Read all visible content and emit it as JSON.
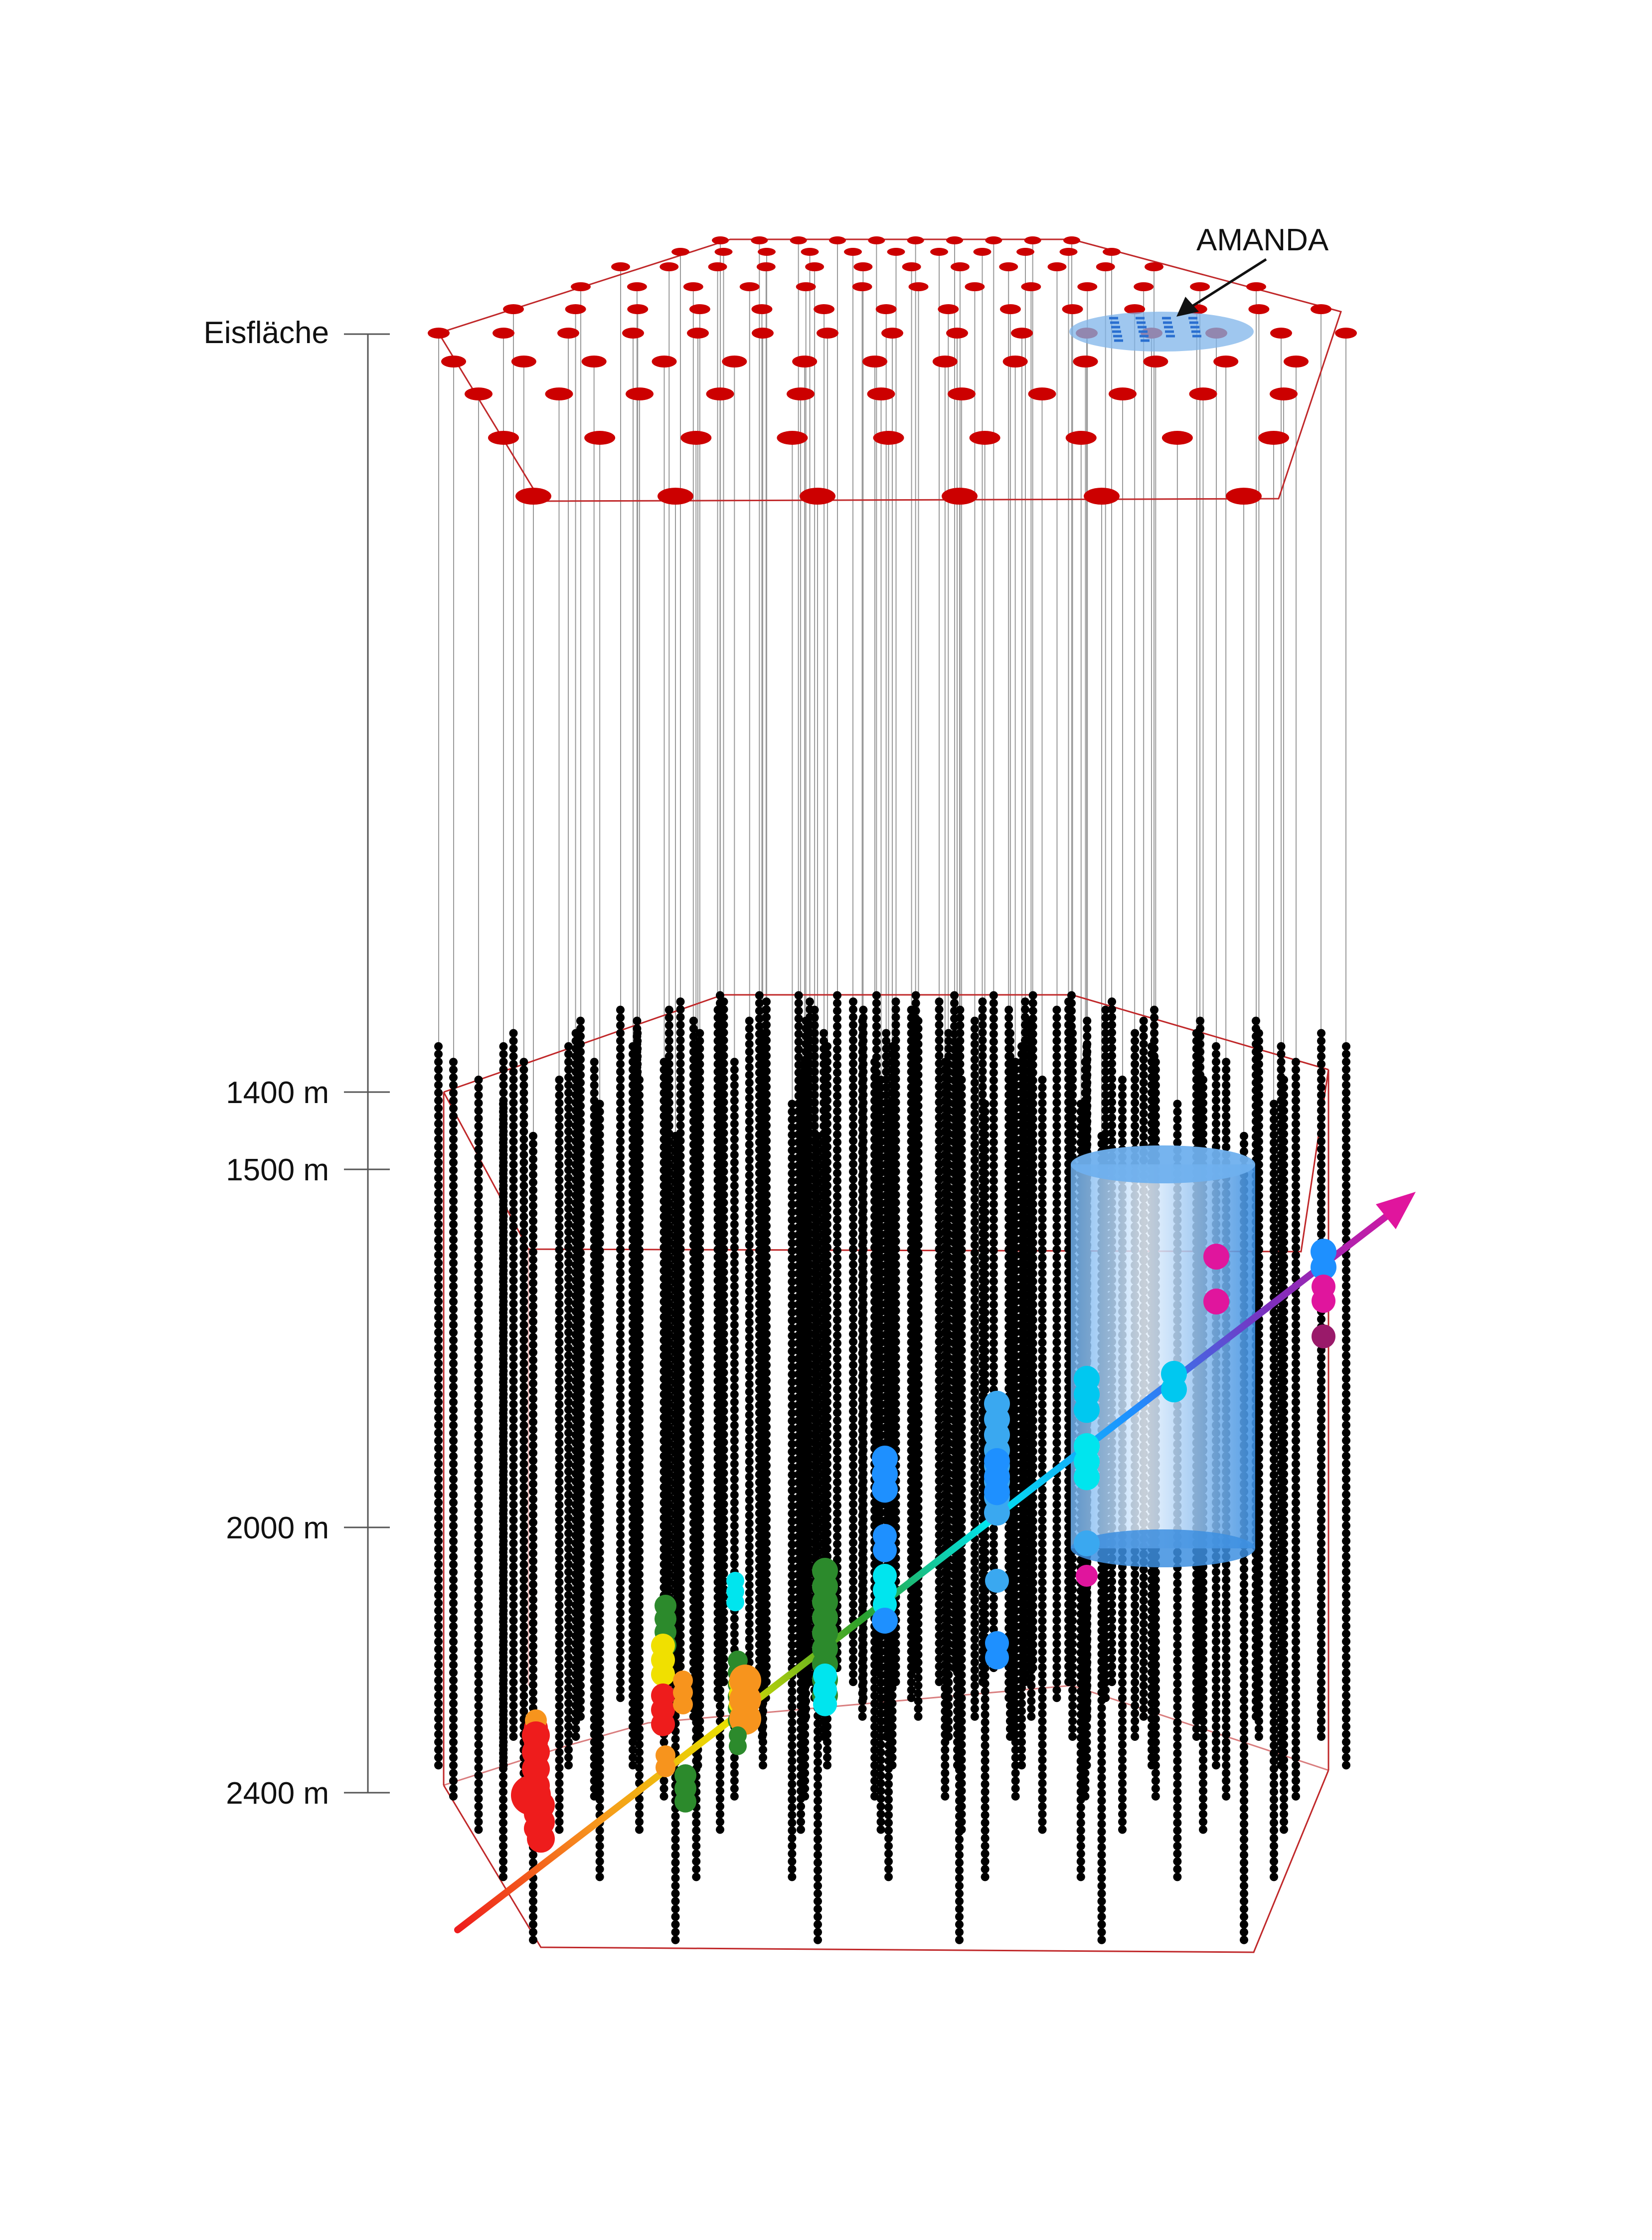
{
  "labels": {
    "surface": "Eisfläche",
    "depth_1400": "1400 m",
    "depth_1500": "1500 m",
    "depth_2000": "2000 m",
    "depth_2400": "2400 m",
    "amanda": "AMANDA"
  },
  "colors": {
    "surface_station": "#cc0000",
    "frame": "#c0282a",
    "cable": "#9a9a9a",
    "dom": "#000000",
    "amanda_region": "#7fb4ea",
    "amanda_cylinder": "#5aa2e8"
  },
  "track_gradient": [
    "#ee1c1c",
    "#f7941d",
    "#f0e000",
    "#2ca02c",
    "#00ffff",
    "#1e90ff",
    "#7b2fbe",
    "#e0159d"
  ]
}
